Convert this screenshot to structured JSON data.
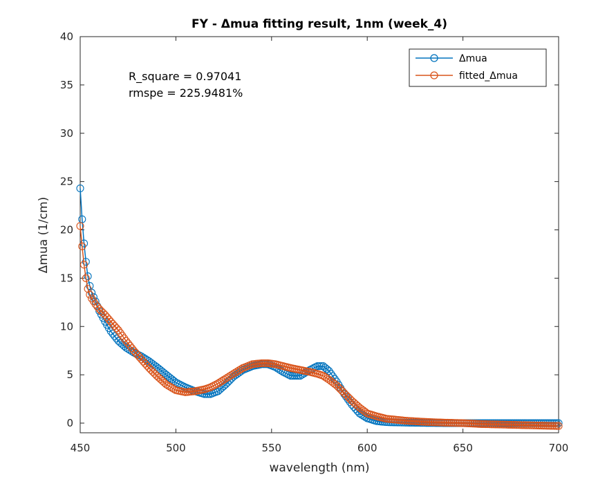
{
  "chart_data": {
    "type": "line",
    "title": "FY - Δmua fitting result, 1nm (week_4)",
    "xlabel": "wavelength (nm)",
    "ylabel": "Δmua (1/cm)",
    "xlim": [
      450,
      700
    ],
    "ylim": [
      -1,
      40
    ],
    "xticks": [
      "450",
      "500",
      "550",
      "600",
      "650",
      "700"
    ],
    "yticks": [
      "0",
      "5",
      "10",
      "15",
      "20",
      "25",
      "30",
      "35",
      "40"
    ],
    "grid": false,
    "legend_position": "top-right",
    "annotations": [
      "R_square = 0.97041",
      "rmspe = 225.9481%"
    ],
    "x": [
      450,
      451,
      452,
      453,
      454,
      455,
      456,
      458,
      460,
      463,
      466,
      470,
      474,
      478,
      482,
      486,
      490,
      495,
      500,
      505,
      510,
      515,
      518,
      522,
      526,
      530,
      535,
      540,
      545,
      548,
      552,
      556,
      560,
      565,
      570,
      574,
      577,
      580,
      584,
      588,
      592,
      596,
      600,
      605,
      610,
      620,
      630,
      640,
      650,
      660,
      670,
      680,
      690,
      700
    ],
    "series": [
      {
        "name": "Δmua",
        "color": "#0072BD",
        "values": [
          24.3,
          21.1,
          18.6,
          16.7,
          15.2,
          14.2,
          13.5,
          12.6,
          11.6,
          10.5,
          9.5,
          8.5,
          7.8,
          7.3,
          6.9,
          6.4,
          5.8,
          5.0,
          4.2,
          3.7,
          3.3,
          3.0,
          3.0,
          3.3,
          4.0,
          4.8,
          5.5,
          5.9,
          6.1,
          6.1,
          5.8,
          5.3,
          4.9,
          4.9,
          5.5,
          5.9,
          5.9,
          5.4,
          4.3,
          3.0,
          1.9,
          1.0,
          0.5,
          0.2,
          0.1,
          0.05,
          0.02,
          0.0,
          0.0,
          0.0,
          0.0,
          0.0,
          0.0,
          0.0
        ]
      },
      {
        "name": "fitted_Δmua",
        "color": "#D95319",
        "values": [
          20.4,
          18.3,
          16.4,
          15.0,
          13.9,
          13.3,
          12.9,
          12.3,
          11.8,
          11.2,
          10.5,
          9.6,
          8.5,
          7.5,
          6.6,
          5.7,
          4.9,
          4.0,
          3.4,
          3.2,
          3.3,
          3.5,
          3.7,
          4.1,
          4.6,
          5.1,
          5.7,
          6.1,
          6.2,
          6.2,
          6.1,
          5.9,
          5.7,
          5.5,
          5.3,
          5.1,
          4.9,
          4.5,
          3.9,
          3.1,
          2.3,
          1.6,
          1.0,
          0.7,
          0.45,
          0.25,
          0.13,
          0.05,
          0.0,
          -0.1,
          -0.15,
          -0.2,
          -0.25,
          -0.3
        ]
      }
    ]
  }
}
